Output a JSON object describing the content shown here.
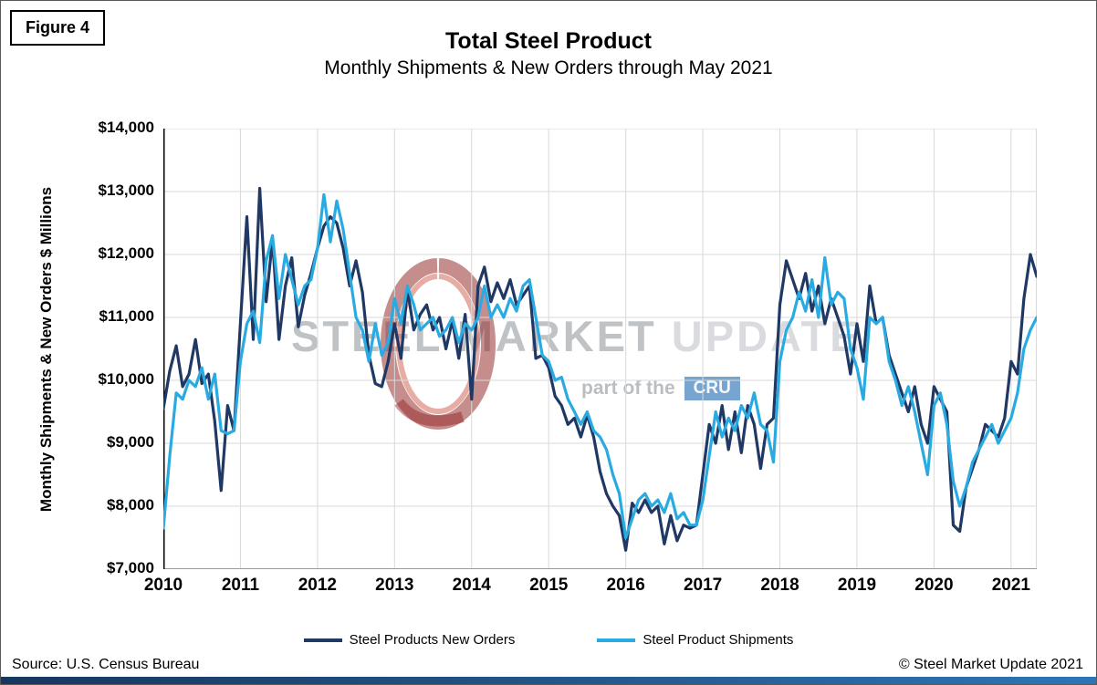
{
  "figure_label": "Figure 4",
  "title": "Total Steel Product",
  "subtitle": "Monthly Shipments & New Orders through May 2021",
  "watermark": {
    "word1": "STEEL",
    "word2": "MARKET",
    "word3": "UPDATE",
    "tagline": "part of the",
    "brand": "CRU",
    "brand_box_color": "#2e75b6",
    "swirl_color": "#8e1c1c"
  },
  "footer": {
    "source": "Source: U.S. Census Bureau",
    "copyright": "© Steel Market Update 2021"
  },
  "footer_bar": {
    "color_left": "#17375e",
    "color_right": "#2e75b6"
  },
  "chart_data": {
    "type": "line",
    "title": "Total Steel Product",
    "subtitle": "Monthly Shipments & New Orders through May 2021",
    "ylabel": "Monthly Shipments & New Orders $ Millions",
    "xlabel": "",
    "ylim": [
      7000,
      14000
    ],
    "y_tick_step": 1000,
    "y_tick_labels": [
      "$7,000",
      "$8,000",
      "$9,000",
      "$10,000",
      "$11,000",
      "$12,000",
      "$13,000",
      "$14,000"
    ],
    "x_tick_labels": [
      "2010",
      "2011",
      "2012",
      "2013",
      "2014",
      "2015",
      "2016",
      "2017",
      "2018",
      "2019",
      "2020",
      "2021"
    ],
    "x_unit": "month",
    "x_range": "Jan 2010 - May 2021",
    "grid": true,
    "grid_color": "#d9d9d9",
    "legend_position": "bottom",
    "series": [
      {
        "name": "Steel Products New Orders",
        "color": "#1f3864",
        "values": [
          9550,
          10150,
          10550,
          9900,
          10100,
          10650,
          9950,
          10100,
          9350,
          8250,
          9600,
          9200,
          10900,
          12600,
          10650,
          13050,
          11250,
          12250,
          10650,
          11500,
          11950,
          10850,
          11350,
          11700,
          12100,
          12450,
          12600,
          12500,
          12100,
          11500,
          11900,
          11400,
          10400,
          9950,
          9900,
          10300,
          10900,
          10350,
          11450,
          10800,
          11050,
          11200,
          10800,
          11000,
          10500,
          10950,
          10350,
          11050,
          9700,
          11500,
          11800,
          11250,
          11550,
          11300,
          11600,
          11200,
          11350,
          11500,
          10350,
          10400,
          10200,
          9750,
          9600,
          9300,
          9400,
          9100,
          9450,
          9100,
          8550,
          8200,
          8000,
          7850,
          7300,
          8050,
          7900,
          8100,
          7900,
          8000,
          7400,
          7850,
          7450,
          7700,
          7650,
          7700,
          8500,
          9300,
          9000,
          9600,
          8900,
          9500,
          8850,
          9600,
          9300,
          8600,
          9300,
          9400,
          11200,
          11900,
          11600,
          11300,
          11700,
          11100,
          11500,
          10900,
          11300,
          11000,
          10700,
          10100,
          10900,
          10300,
          11500,
          10900,
          11000,
          10400,
          10100,
          9800,
          9500,
          9900,
          9300,
          9000,
          9900,
          9700,
          9500,
          7700,
          7600,
          8300,
          8600,
          8900,
          9300,
          9200,
          9100,
          9400,
          10300,
          10100,
          11300,
          12000,
          11650
        ]
      },
      {
        "name": "Steel Product Shipments",
        "color": "#29abe2",
        "values": [
          7650,
          8800,
          9800,
          9700,
          10000,
          9900,
          10200,
          9700,
          10100,
          9200,
          9150,
          9200,
          10300,
          10900,
          11100,
          10600,
          11900,
          12300,
          11300,
          12000,
          11600,
          11200,
          11500,
          11600,
          12100,
          12950,
          12200,
          12850,
          12400,
          11700,
          11000,
          10800,
          10300,
          10900,
          10400,
          10600,
          11300,
          10900,
          11500,
          11200,
          10800,
          10900,
          11000,
          10700,
          10800,
          11000,
          10600,
          10900,
          10800,
          11000,
          11500,
          11000,
          11200,
          11000,
          11300,
          11100,
          11500,
          11600,
          11000,
          10400,
          10300,
          10000,
          10050,
          9700,
          9500,
          9300,
          9500,
          9200,
          9100,
          8900,
          8500,
          8200,
          7500,
          7800,
          8100,
          8200,
          8000,
          8100,
          7900,
          8200,
          7800,
          7900,
          7700,
          7700,
          8100,
          8800,
          9500,
          9100,
          9400,
          9200,
          9600,
          9400,
          9800,
          9300,
          9200,
          8700,
          10300,
          10800,
          11000,
          11400,
          11100,
          11600,
          11000,
          11950,
          11200,
          11400,
          11300,
          10500,
          10200,
          9700,
          11000,
          10900,
          11000,
          10300,
          10000,
          9600,
          9900,
          9500,
          9000,
          8500,
          9600,
          9800,
          9300,
          8400,
          8000,
          8300,
          8700,
          8900,
          9100,
          9300,
          9000,
          9200,
          9400,
          9800,
          10500,
          10800,
          11000
        ]
      }
    ]
  }
}
